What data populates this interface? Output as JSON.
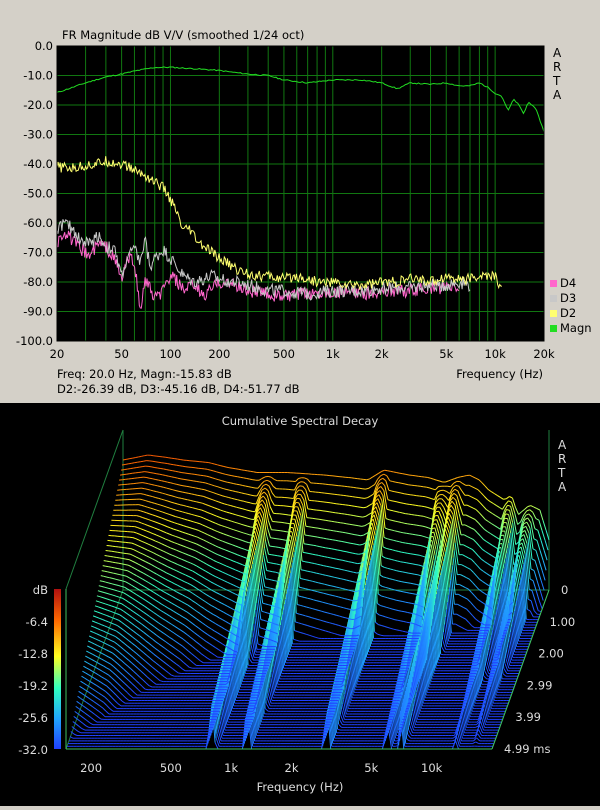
{
  "chart_data": [
    {
      "type": "line",
      "title": "FR Magnitude dB V/V (smoothed 1/24 oct)",
      "brand": "ARTA",
      "xlabel": "Frequency (Hz)",
      "xscale": "log",
      "xlim": [
        20,
        20000
      ],
      "ylim": [
        -100,
        0
      ],
      "x_ticks": [
        {
          "v": 20,
          "t": "20"
        },
        {
          "v": 50,
          "t": "50"
        },
        {
          "v": 100,
          "t": "100"
        },
        {
          "v": 200,
          "t": "200"
        },
        {
          "v": 500,
          "t": "500"
        },
        {
          "v": 1000,
          "t": "1k"
        },
        {
          "v": 2000,
          "t": "2k"
        },
        {
          "v": 5000,
          "t": "5k"
        },
        {
          "v": 10000,
          "t": "10k"
        },
        {
          "v": 20000,
          "t": "20k"
        }
      ],
      "y_ticks": [
        {
          "v": 0,
          "t": "0.0"
        },
        {
          "v": -10,
          "t": "-10.0"
        },
        {
          "v": -20,
          "t": "-20.0"
        },
        {
          "v": -30,
          "t": "-30.0"
        },
        {
          "v": -40,
          "t": "-40.0"
        },
        {
          "v": -50,
          "t": "-50.0"
        },
        {
          "v": -60,
          "t": "-60.0"
        },
        {
          "v": -70,
          "t": "-70.0"
        },
        {
          "v": -80,
          "t": "-80.0"
        },
        {
          "v": -90,
          "t": "-90.0"
        },
        {
          "v": -100,
          "t": "-100.0"
        }
      ],
      "grid": true,
      "legend_position": "bottom-right",
      "readout_line1": "Freq: 20.0 Hz, Magn:-15.83 dB",
      "readout_line2": "D2:-26.39 dB, D3:-45.16 dB, D4:-51.77 dB",
      "series": [
        {
          "name": "Magn",
          "color": "#22dd22",
          "x": [
            20,
            25,
            30,
            40,
            50,
            60,
            70,
            80,
            100,
            120,
            150,
            200,
            250,
            300,
            400,
            500,
            700,
            1000,
            1500,
            2000,
            2500,
            3000,
            4000,
            5000,
            6000,
            7000,
            8000,
            9000,
            10000,
            11000,
            12000,
            13000,
            14000,
            15000,
            16000,
            17000,
            18000,
            20000
          ],
          "y": [
            -15.8,
            -14,
            -12.5,
            -10.5,
            -9.5,
            -8.5,
            -7.8,
            -7.3,
            -7.2,
            -7.5,
            -7.8,
            -8.3,
            -9,
            -9.5,
            -10,
            -11.5,
            -12.5,
            -11.5,
            -11.5,
            -12.5,
            -14.5,
            -12.5,
            -13,
            -12.5,
            -13.5,
            -13.5,
            -12.5,
            -14,
            -16,
            -17,
            -22,
            -18,
            -20,
            -23,
            -19,
            -20,
            -22,
            -29
          ]
        },
        {
          "name": "D2",
          "color": "#ffff70",
          "x": [
            20,
            25,
            30,
            35,
            40,
            50,
            60,
            70,
            80,
            90,
            100,
            110,
            120,
            130,
            150,
            170,
            200,
            230,
            260,
            300,
            350,
            400,
            500,
            600,
            700,
            800,
            1000,
            1200,
            1500,
            2000,
            2500,
            3000,
            3500,
            4000,
            5000,
            6000,
            7000,
            8000,
            9000,
            10000,
            11000
          ],
          "y": [
            -41,
            -41.5,
            -40.5,
            -40,
            -39,
            -40,
            -42,
            -44,
            -46,
            -48,
            -52,
            -57,
            -63,
            -62,
            -67,
            -69,
            -72,
            -74,
            -76,
            -77,
            -78,
            -78,
            -79,
            -78,
            -79,
            -80,
            -80,
            -81,
            -81,
            -80,
            -80,
            -79,
            -79,
            -80,
            -78,
            -79,
            -79,
            -78,
            -78,
            -78,
            -83
          ]
        },
        {
          "name": "D3",
          "color": "#c8c8c8",
          "x": [
            20,
            22,
            25,
            28,
            32,
            36,
            40,
            45,
            50,
            55,
            60,
            65,
            70,
            75,
            80,
            90,
            100,
            110,
            120,
            140,
            160,
            180,
            200,
            250,
            300,
            400,
            500,
            700,
            1000,
            1500,
            2000,
            3000,
            4000,
            5000,
            6000,
            7000
          ],
          "y": [
            -62,
            -60,
            -62,
            -66,
            -67,
            -64,
            -68,
            -69,
            -78,
            -71,
            -69,
            -73,
            -66,
            -75,
            -72,
            -69,
            -72,
            -75,
            -78,
            -80,
            -79,
            -78,
            -79,
            -80,
            -81,
            -83,
            -83,
            -84,
            -83,
            -83,
            -82,
            -82,
            -81,
            -81,
            -80,
            -81
          ]
        },
        {
          "name": "D4",
          "color": "#ff66cc",
          "x": [
            20,
            22,
            25,
            28,
            32,
            36,
            40,
            45,
            50,
            55,
            60,
            65,
            70,
            80,
            90,
            100,
            110,
            120,
            140,
            160,
            180,
            200,
            250,
            300,
            400,
            500,
            700,
            1000,
            1500,
            2000,
            3000,
            4000,
            5000,
            6000
          ],
          "y": [
            -67,
            -63,
            -66,
            -69,
            -71,
            -67,
            -68,
            -72,
            -79,
            -72,
            -73,
            -90,
            -79,
            -86,
            -83,
            -78,
            -80,
            -83,
            -81,
            -85,
            -82,
            -80,
            -81,
            -83,
            -84,
            -85,
            -84,
            -83,
            -84,
            -83,
            -83,
            -82,
            -82,
            -82
          ]
        }
      ]
    },
    {
      "type": "waterfall",
      "title": "Cumulative Spectral Decay",
      "brand": "ARTA",
      "xlabel": "Frequency (Hz)",
      "xscale": "log",
      "xlim": [
        150,
        20000
      ],
      "zlabel": "dB",
      "zlim": [
        -32,
        0
      ],
      "x_ticks": [
        {
          "v": 200,
          "t": "200"
        },
        {
          "v": 500,
          "t": "500"
        },
        {
          "v": 1000,
          "t": "1k"
        },
        {
          "v": 2000,
          "t": "2k"
        },
        {
          "v": 5000,
          "t": "5k"
        },
        {
          "v": 10000,
          "t": "10k"
        }
      ],
      "z_ticks": [
        "dB",
        "-6.4",
        "-12.8",
        "-19.2",
        "-25.6",
        "-32.0"
      ],
      "time_ticks": [
        "0",
        "1.00",
        "2.00",
        "2.99",
        "3.99",
        "4.99 ms"
      ],
      "time_range_ms": [
        0,
        4.99
      ],
      "slices": 60,
      "initial_response": {
        "x": [
          150,
          200,
          250,
          300,
          400,
          500,
          700,
          1000,
          1500,
          2000,
          2500,
          3000,
          4000,
          5000,
          6000,
          7000,
          8000,
          9000,
          10000,
          12000,
          13000,
          14000,
          16000,
          18000,
          20000
        ],
        "y": [
          -6,
          -5,
          -5.5,
          -6,
          -6.5,
          -7.5,
          -8.5,
          -8.5,
          -9,
          -9.5,
          -10,
          -8,
          -9,
          -9.5,
          -10.5,
          -9.5,
          -9,
          -10,
          -12,
          -14,
          -13,
          -17,
          -15,
          -16,
          -22
        ]
      }
    }
  ]
}
